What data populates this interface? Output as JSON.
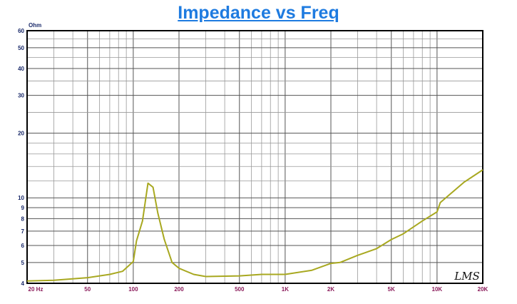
{
  "chart_data": {
    "type": "line",
    "title": "Impedance vs Freq",
    "ylabel": "Ohm",
    "xscale": "log",
    "yscale": "log",
    "xlim": [
      20,
      20000
    ],
    "ylim": [
      4,
      60
    ],
    "grid": true,
    "x_ticks": [
      {
        "v": 20,
        "label": "20 Hz"
      },
      {
        "v": 50,
        "label": "50"
      },
      {
        "v": 100,
        "label": "100"
      },
      {
        "v": 200,
        "label": "200"
      },
      {
        "v": 500,
        "label": "500"
      },
      {
        "v": 1000,
        "label": "1K"
      },
      {
        "v": 2000,
        "label": "2K"
      },
      {
        "v": 5000,
        "label": "5K"
      },
      {
        "v": 10000,
        "label": "10K"
      },
      {
        "v": 20000,
        "label": "20K"
      }
    ],
    "y_ticks": [
      {
        "v": 60,
        "label": "60"
      },
      {
        "v": 50,
        "label": "50"
      },
      {
        "v": 40,
        "label": "40"
      },
      {
        "v": 30,
        "label": "30"
      },
      {
        "v": 20,
        "label": "20"
      },
      {
        "v": 10,
        "label": "10"
      },
      {
        "v": 9,
        "label": "9"
      },
      {
        "v": 8,
        "label": "8"
      },
      {
        "v": 7,
        "label": "7"
      },
      {
        "v": 6,
        "label": "6"
      },
      {
        "v": 5,
        "label": "5"
      },
      {
        "v": 4,
        "label": "4"
      }
    ],
    "series": [
      {
        "color": "#a8a820",
        "x": [
          20,
          30,
          50,
          70,
          85,
          100,
          105,
          115,
          125,
          135,
          145,
          160,
          180,
          200,
          250,
          300,
          500,
          700,
          1000,
          1500,
          2000,
          2300,
          3000,
          4000,
          5000,
          6000,
          8000,
          10000,
          10500,
          15000,
          20000
        ],
        "y": [
          4.1,
          4.13,
          4.25,
          4.4,
          4.55,
          5.05,
          6.3,
          7.8,
          11.7,
          11.2,
          8.5,
          6.4,
          5.0,
          4.7,
          4.4,
          4.3,
          4.33,
          4.4,
          4.4,
          4.6,
          4.95,
          5.0,
          5.4,
          5.8,
          6.4,
          6.8,
          7.8,
          8.6,
          9.5,
          11.8,
          13.5
        ]
      }
    ]
  },
  "watermark": "LMS"
}
